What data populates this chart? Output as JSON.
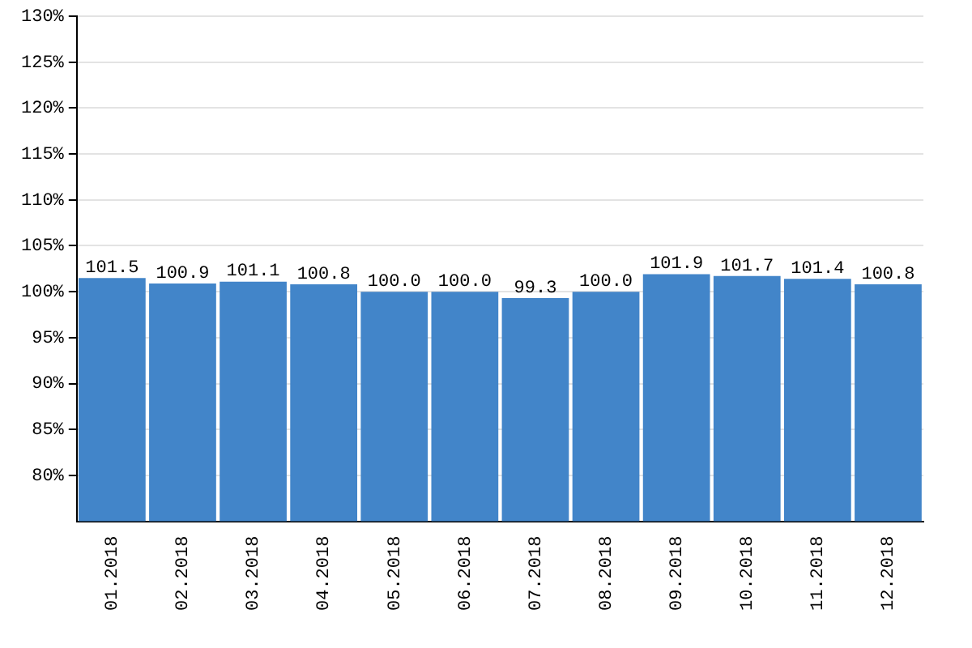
{
  "chart_data": {
    "type": "bar",
    "categories": [
      "01.2018",
      "02.2018",
      "03.2018",
      "04.2018",
      "05.2018",
      "06.2018",
      "07.2018",
      "08.2018",
      "09.2018",
      "10.2018",
      "11.2018",
      "12.2018"
    ],
    "values": [
      101.5,
      100.9,
      101.1,
      100.8,
      100.0,
      100.0,
      99.3,
      100.0,
      101.9,
      101.7,
      101.4,
      100.8
    ],
    "value_labels": [
      "101.5",
      "100.9",
      "101.1",
      "100.8",
      "100.0",
      "100.0",
      "99.3",
      "100.0",
      "101.9",
      "101.7",
      "101.4",
      "100.8"
    ],
    "color": "#4285c9",
    "ylim": [
      75,
      130
    ],
    "yticks": [
      {
        "value": 80,
        "label": "80%"
      },
      {
        "value": 85,
        "label": "85%"
      },
      {
        "value": 90,
        "label": "90%"
      },
      {
        "value": 95,
        "label": "95%"
      },
      {
        "value": 100,
        "label": "100%"
      },
      {
        "value": 105,
        "label": "105%"
      },
      {
        "value": 110,
        "label": "110%"
      },
      {
        "value": 115,
        "label": "115%"
      },
      {
        "value": 120,
        "label": "120%"
      },
      {
        "value": 125,
        "label": "125%"
      },
      {
        "value": 130,
        "label": "130%"
      }
    ],
    "grid": "y"
  }
}
